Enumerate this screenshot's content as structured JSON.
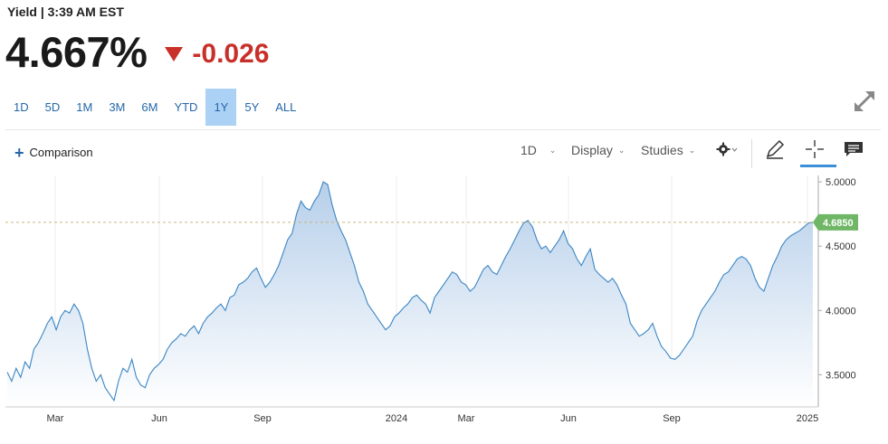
{
  "header": {
    "meta": "Yield | 3:39 AM EST",
    "price": "4.667%",
    "change": "-0.026",
    "change_color": "#c8302a"
  },
  "ranges": [
    {
      "label": "1D",
      "active": false
    },
    {
      "label": "5D",
      "active": false
    },
    {
      "label": "1M",
      "active": false
    },
    {
      "label": "3M",
      "active": false
    },
    {
      "label": "6M",
      "active": false
    },
    {
      "label": "YTD",
      "active": false
    },
    {
      "label": "1Y",
      "active": true
    },
    {
      "label": "5Y",
      "active": false
    },
    {
      "label": "ALL",
      "active": false
    }
  ],
  "toolbar": {
    "comparison_label": "Comparison",
    "interval_label": "1D",
    "display_label": "Display",
    "studies_label": "Studies",
    "icons": [
      "gear-icon",
      "pencil-icon",
      "crosshair-icon",
      "comment-icon",
      "expand-icon"
    ]
  },
  "chart_data": {
    "type": "area",
    "series": [
      {
        "values": [
          3.52,
          3.45,
          3.55,
          3.48,
          3.6,
          3.55,
          3.7,
          3.75,
          3.82,
          3.9,
          3.95,
          3.85,
          3.95,
          4.0,
          3.98,
          4.05,
          4.0,
          3.9,
          3.7,
          3.55,
          3.45,
          3.5,
          3.4,
          3.35,
          3.3,
          3.45,
          3.55,
          3.52,
          3.62,
          3.48,
          3.42,
          3.4,
          3.5,
          3.55,
          3.58,
          3.62,
          3.7,
          3.75,
          3.78,
          3.82,
          3.8,
          3.85,
          3.88,
          3.82,
          3.9,
          3.95,
          3.98,
          4.02,
          4.05,
          4.0,
          4.1,
          4.12,
          4.2,
          4.22,
          4.25,
          4.3,
          4.33,
          4.25,
          4.18,
          4.22,
          4.28,
          4.35,
          4.45,
          4.55,
          4.6,
          4.75,
          4.85,
          4.8,
          4.78,
          4.85,
          4.9,
          5.0,
          4.98,
          4.82,
          4.7,
          4.62,
          4.55,
          4.45,
          4.35,
          4.22,
          4.15,
          4.05,
          4.0,
          3.95,
          3.9,
          3.85,
          3.88,
          3.95,
          3.98,
          4.02,
          4.05,
          4.1,
          4.12,
          4.08,
          4.05,
          3.98,
          4.1,
          4.15,
          4.2,
          4.25,
          4.3,
          4.28,
          4.22,
          4.2,
          4.15,
          4.18,
          4.25,
          4.32,
          4.35,
          4.3,
          4.28,
          4.35,
          4.42,
          4.48,
          4.55,
          4.62,
          4.68,
          4.7,
          4.65,
          4.55,
          4.48,
          4.5,
          4.45,
          4.5,
          4.55,
          4.62,
          4.52,
          4.48,
          4.4,
          4.35,
          4.42,
          4.48,
          4.32,
          4.28,
          4.25,
          4.22,
          4.25,
          4.2,
          4.12,
          4.05,
          3.9,
          3.85,
          3.8,
          3.82,
          3.85,
          3.9,
          3.8,
          3.72,
          3.68,
          3.63,
          3.62,
          3.65,
          3.7,
          3.75,
          3.8,
          3.92,
          4.0,
          4.05,
          4.1,
          4.15,
          4.22,
          4.28,
          4.3,
          4.35,
          4.4,
          4.42,
          4.4,
          4.35,
          4.25,
          4.18,
          4.15,
          4.25,
          4.35,
          4.42,
          4.5,
          4.55,
          4.58,
          4.6,
          4.62,
          4.65,
          4.68,
          4.685
        ]
      }
    ],
    "x_tick_labels": [
      "Mar",
      "Jun",
      "Sep",
      "2024",
      "Mar",
      "Jun",
      "Sep",
      "2025"
    ],
    "y_tick_labels": [
      "3.5000",
      "4.0000",
      "4.5000",
      "5.0000"
    ],
    "y_ticks": [
      3.5,
      4.0,
      4.5,
      5.0
    ],
    "ylim": [
      3.25,
      5.05
    ],
    "last_value": 4.685,
    "last_value_label": "4.6850",
    "reference_line": 4.685,
    "line_color": "#3b86c4",
    "fill_top_color": "#b6cfea",
    "fill_bottom_color": "#ffffff",
    "last_label_color": "#6fb766",
    "grid": "vertical",
    "legend": "none"
  }
}
